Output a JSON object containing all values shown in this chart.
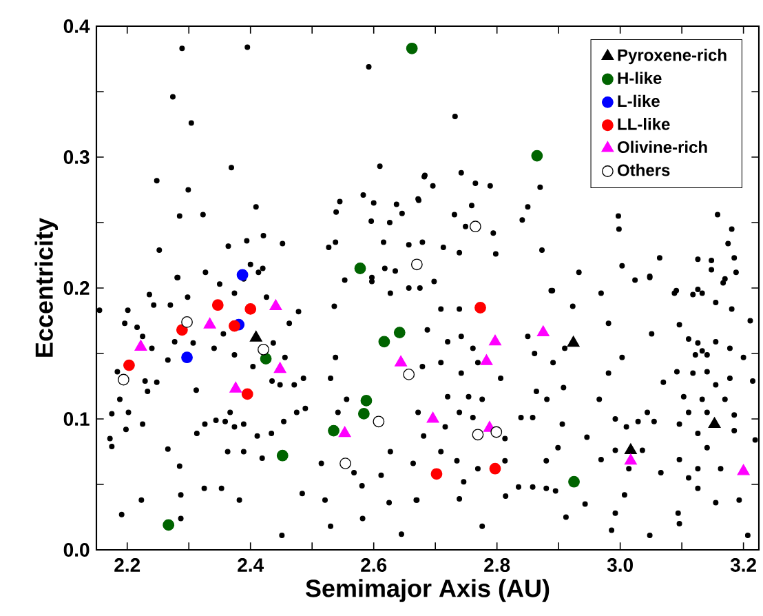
{
  "chart_data": {
    "type": "scatter",
    "xlabel": "Semimajor Axis (AU)",
    "ylabel": "Eccentricity",
    "xlim": [
      2.15,
      3.225
    ],
    "ylim": [
      0,
      0.4
    ],
    "xticks": [
      2.2,
      {
        "value": 2.3,
        "label": null
      },
      2.4,
      {
        "value": 2.5,
        "label": null
      },
      2.6,
      {
        "value": 2.7,
        "label": null
      },
      2.8,
      {
        "value": 2.9,
        "label": null
      },
      {
        "value": 3,
        "label": "3.0"
      },
      {
        "value": 3.1,
        "label": null
      },
      3.2
    ],
    "yticks": [
      {
        "value": 0,
        "label": "0.0"
      },
      {
        "value": 0.05,
        "label": null
      },
      0.1,
      {
        "value": 0.15,
        "label": null
      },
      0.2,
      {
        "value": 0.25,
        "label": null
      },
      0.3,
      {
        "value": 0.35,
        "label": null
      },
      0.4
    ],
    "grid": false,
    "legend": "top right",
    "series": [
      {
        "color": "#000000",
        "marker": "circle",
        "x": [
          2.289,
          2.395,
          2.274,
          2.304,
          2.592,
          2.369,
          2.248,
          2.299,
          2.61,
          2.285,
          2.323,
          2.409,
          2.682,
          2.252,
          2.421,
          2.452,
          2.364,
          2.394,
          2.545,
          2.539,
          2.583,
          2.6,
          2.637,
          2.596,
          2.626,
          2.646,
          2.672,
          2.527,
          2.538,
          2.616,
          2.657,
          2.281,
          2.327,
          2.35,
          2.413,
          2.42,
          2.4,
          2.553,
          2.597,
          2.618,
          2.635,
          2.732,
          2.683,
          2.696,
          2.742,
          2.765,
          2.789,
          2.87,
          2.85,
          2.841,
          2.759,
          2.731,
          2.749,
          2.794,
          2.673,
          2.679,
          2.713,
          2.739,
          2.798,
          2.873,
          2.933,
          2.89,
          2.997,
          2.998,
          3.003,
          3.064,
          3.024,
          3.048,
          3.126,
          3.148,
          3.148,
          3.158,
          3.181,
          3.175,
          3.185,
          3.188,
          3.167,
          3.091,
          3.126,
          2.282,
          2.236,
          2.201,
          2.155,
          2.27,
          2.298,
          2.243,
          2.196,
          2.216,
          2.225,
          2.24,
          2.184,
          2.229,
          2.248,
          2.233,
          2.188,
          2.175,
          2.202,
          2.225,
          2.198,
          2.172,
          2.175,
          2.223,
          2.191,
          2.285,
          2.266,
          2.287,
          2.287,
          2.325,
          2.353,
          2.382,
          2.312,
          2.313,
          2.326,
          2.344,
          2.359,
          2.367,
          2.374,
          2.389,
          2.411,
          2.363,
          2.389,
          2.419,
          2.434,
          2.454,
          2.475,
          2.484,
          2.451,
          2.489,
          2.471,
          2.448,
          2.435,
          2.456,
          2.463,
          2.478,
          2.374,
          2.389,
          2.426,
          2.356,
          2.374,
          2.404,
          2.341,
          2.307,
          2.277,
          2.266,
          2.437,
          2.486,
          2.515,
          2.521,
          2.53,
          2.536,
          2.538,
          2.53,
          2.542,
          2.556,
          2.568,
          2.581,
          2.582,
          2.597,
          2.627,
          2.657,
          2.612,
          2.625,
          2.645,
          2.669,
          2.664,
          2.681,
          2.672,
          2.627,
          2.675,
          2.698,
          2.739,
          2.709,
          2.687,
          2.72,
          2.742,
          2.761,
          2.679,
          2.709,
          2.742,
          2.769,
          2.806,
          2.72,
          2.754,
          2.776,
          2.739,
          2.761,
          2.716,
          2.813,
          2.709,
          2.735,
          2.769,
          2.746,
          2.739,
          2.67,
          2.776,
          2.813,
          2.814,
          2.888,
          2.923,
          2.85,
          2.861,
          2.891,
          2.91,
          2.864,
          2.881,
          2.858,
          2.908,
          2.839,
          2.906,
          2.946,
          2.899,
          2.88,
          2.835,
          2.858,
          2.88,
          2.895,
          2.943,
          2.912,
          2.969,
          2.981,
          3.003,
          2.981,
          2.966,
          2.992,
          3.01,
          3.029,
          3.044,
          3.055,
          2.992,
          2.969,
          3.036,
          3.014,
          3.007,
          2.992,
          2.986,
          3.048,
          3.066,
          3.07,
          3.051,
          3.048,
          3.088,
          3.118,
          3.133,
          3.17,
          3.155,
          3.181,
          3.211,
          3.096,
          3.111,
          3.126,
          3.133,
          3.141,
          3.122,
          3.155,
          3.178,
          3.2,
          3.092,
          3.118,
          3.141,
          3.155,
          3.178,
          3.215,
          3.103,
          3.133,
          3.17,
          3.111,
          3.141,
          3.185,
          3.096,
          3.126,
          3.185,
          3.141,
          3.096,
          3.126,
          3.163,
          3.111,
          3.126,
          3.155,
          3.193,
          3.094,
          3.096,
          3.207,
          3.219
        ],
        "values": [
          0.383,
          0.384,
          0.346,
          0.326,
          0.369,
          0.292,
          0.282,
          0.275,
          0.293,
          0.255,
          0.256,
          0.262,
          0.285,
          0.229,
          0.24,
          0.234,
          0.232,
          0.236,
          0.266,
          0.258,
          0.271,
          0.265,
          0.264,
          0.251,
          0.25,
          0.257,
          0.268,
          0.231,
          0.235,
          0.235,
          0.233,
          0.208,
          0.212,
          0.203,
          0.212,
          0.215,
          0.218,
          0.206,
          0.208,
          0.215,
          0.213,
          0.331,
          0.286,
          0.278,
          0.288,
          0.28,
          0.278,
          0.277,
          0.262,
          0.252,
          0.263,
          0.256,
          0.247,
          0.242,
          0.267,
          0.235,
          0.231,
          0.227,
          0.226,
          0.229,
          0.212,
          0.198,
          0.255,
          0.245,
          0.217,
          0.223,
          0.206,
          0.208,
          0.222,
          0.221,
          0.214,
          0.256,
          0.245,
          0.234,
          0.223,
          0.212,
          0.204,
          0.198,
          0.199,
          0.208,
          0.195,
          0.183,
          0.183,
          0.187,
          0.193,
          0.187,
          0.173,
          0.17,
          0.163,
          0.154,
          0.136,
          0.129,
          0.128,
          0.121,
          0.115,
          0.104,
          0.105,
          0.096,
          0.092,
          0.085,
          0.079,
          0.038,
          0.027,
          0.064,
          0.077,
          0.042,
          0.024,
          0.047,
          0.047,
          0.038,
          0.122,
          0.089,
          0.096,
          0.099,
          0.098,
          0.105,
          0.094,
          0.096,
          0.087,
          0.075,
          0.075,
          0.07,
          0.089,
          0.098,
          0.105,
          0.043,
          0.011,
          0.108,
          0.126,
          0.126,
          0.129,
          0.147,
          0.173,
          0.182,
          0.196,
          0.207,
          0.193,
          0.165,
          0.149,
          0.14,
          0.154,
          0.158,
          0.159,
          0.145,
          0.158,
          0.131,
          0.066,
          0.038,
          0.018,
          0.186,
          0.147,
          0.131,
          0.105,
          0.115,
          0.059,
          0.049,
          0.024,
          0.205,
          0.196,
          0.2,
          0.057,
          0.036,
          0.012,
          0.038,
          0.066,
          0.087,
          0.105,
          0.075,
          0.2,
          0.205,
          0.184,
          0.184,
          0.168,
          0.159,
          0.163,
          0.154,
          0.14,
          0.143,
          0.135,
          0.143,
          0.131,
          0.117,
          0.117,
          0.115,
          0.105,
          0.101,
          0.094,
          0.085,
          0.075,
          0.068,
          0.062,
          0.052,
          0.039,
          0.038,
          0.018,
          0.068,
          0.041,
          0.198,
          0.186,
          0.163,
          0.15,
          0.143,
          0.154,
          0.121,
          0.115,
          0.101,
          0.124,
          0.101,
          0.096,
          0.086,
          0.078,
          0.068,
          0.048,
          0.048,
          0.047,
          0.045,
          0.035,
          0.025,
          0.196,
          0.173,
          0.147,
          0.135,
          0.115,
          0.1,
          0.094,
          0.098,
          0.105,
          0.098,
          0.076,
          0.069,
          0.076,
          0.062,
          0.042,
          0.028,
          0.015,
          0.011,
          0.059,
          0.128,
          0.165,
          0.209,
          0.196,
          0.195,
          0.196,
          0.207,
          0.189,
          0.184,
          0.175,
          0.172,
          0.161,
          0.158,
          0.152,
          0.149,
          0.149,
          0.159,
          0.154,
          0.147,
          0.136,
          0.135,
          0.136,
          0.126,
          0.131,
          0.129,
          0.117,
          0.115,
          0.115,
          0.105,
          0.105,
          0.103,
          0.096,
          0.089,
          0.091,
          0.078,
          0.069,
          0.062,
          0.062,
          0.055,
          0.047,
          0.036,
          0.038,
          0.028,
          0.02,
          0.011,
          0.084
        ]
      },
      {
        "name": "Pyroxene-rich",
        "color": "#000000",
        "marker": "triangle",
        "x": [
          2.409,
          2.924,
          3.153,
          3.017
        ],
        "values": [
          0.162,
          0.158,
          0.096,
          0.076
        ]
      },
      {
        "name": "H-like",
        "color": "#006400",
        "marker": "circle",
        "x": [
          2.662,
          2.578,
          2.865,
          2.425,
          2.452,
          2.267,
          2.617,
          2.642,
          2.588,
          2.584,
          2.535,
          2.925
        ],
        "values": [
          0.383,
          0.215,
          0.301,
          0.146,
          0.072,
          0.019,
          0.159,
          0.166,
          0.114,
          0.104,
          0.091,
          0.052
        ]
      },
      {
        "name": "L-like",
        "color": "#0000ff",
        "marker": "circle",
        "x": [
          2.387,
          2.381,
          2.297
        ],
        "values": [
          0.21,
          0.172,
          0.147
        ]
      },
      {
        "name": "LL-like",
        "color": "#ff0000",
        "marker": "circle",
        "x": [
          2.347,
          2.4,
          2.289,
          2.374,
          2.203,
          2.395,
          2.773,
          2.702,
          2.797
        ],
        "values": [
          0.187,
          0.184,
          0.168,
          0.171,
          0.141,
          0.119,
          0.185,
          0.058,
          0.062
        ]
      },
      {
        "name": "Olivine-rich",
        "color": "#ff00ff",
        "marker": "triangle",
        "x": [
          2.441,
          2.334,
          2.222,
          2.448,
          2.376,
          2.644,
          2.553,
          2.875,
          2.797,
          2.783,
          2.696,
          2.788,
          3.017,
          3.2
        ],
        "values": [
          0.186,
          0.172,
          0.155,
          0.138,
          0.123,
          0.143,
          0.089,
          0.166,
          0.159,
          0.144,
          0.1,
          0.093,
          0.068,
          0.06
        ]
      },
      {
        "name": "Others",
        "color": "#ffffff",
        "marker": "circle",
        "x": [
          2.67,
          2.765,
          2.297,
          2.421,
          2.194,
          2.657,
          2.608,
          2.554,
          2.769,
          2.799
        ],
        "values": [
          0.218,
          0.247,
          0.174,
          0.153,
          0.13,
          0.134,
          0.098,
          0.066,
          0.088,
          0.09
        ]
      }
    ]
  }
}
